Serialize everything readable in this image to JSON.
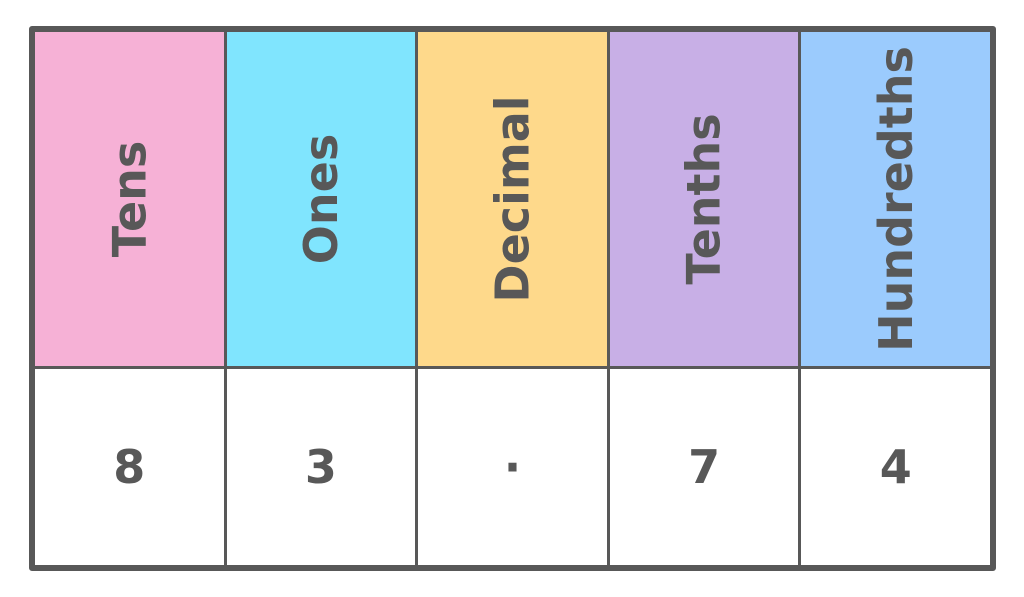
{
  "columns": [
    {
      "label": "Tens",
      "value": "8",
      "color": "#F6B1D6"
    },
    {
      "label": "Ones",
      "value": "3",
      "color": "#80E5FE"
    },
    {
      "label": "Decimal",
      "value": "·",
      "color": "#FED98B"
    },
    {
      "label": "Tenths",
      "value": "7",
      "color": "#C8AFE6"
    },
    {
      "label": "Hundredths",
      "value": "4",
      "color": "#9BCBFD"
    }
  ]
}
